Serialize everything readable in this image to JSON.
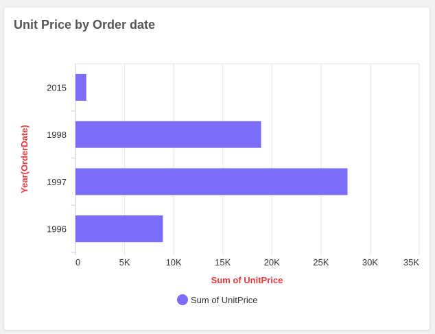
{
  "colors": {
    "bar": "#7c6cf8",
    "axis_title": "#e8383b",
    "grid": "#e6e6e6"
  },
  "chart_data": {
    "type": "bar",
    "orientation": "horizontal",
    "title": "Unit Price by Order date",
    "xlabel": "Sum of UnitPrice",
    "ylabel": "Year(OrderDate)",
    "categories": [
      "2015",
      "1998",
      "1997",
      "1996"
    ],
    "series": [
      {
        "name": "Sum of UnitPrice",
        "values": [
          1100,
          18900,
          27700,
          8900
        ]
      }
    ],
    "xlim": [
      0,
      35000
    ],
    "xticks": [
      0,
      5000,
      10000,
      15000,
      20000,
      25000,
      30000,
      35000
    ],
    "xtick_labels": [
      "0",
      "5K",
      "10K",
      "15K",
      "20K",
      "25K",
      "30K",
      "35K"
    ],
    "grid": true,
    "legend": "bottom"
  }
}
